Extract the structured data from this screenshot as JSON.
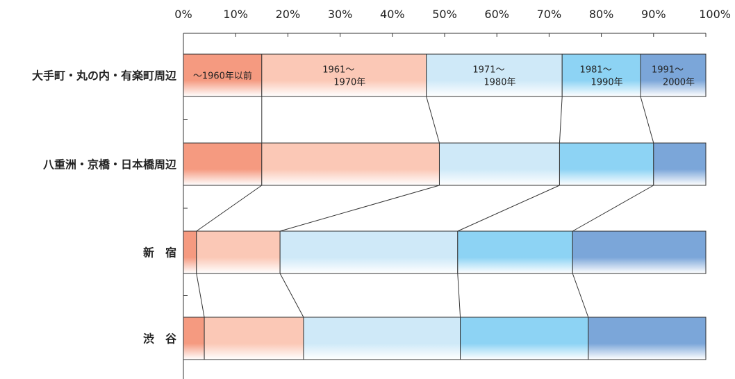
{
  "chart_data": {
    "type": "bar",
    "orientation": "horizontal",
    "stacked": true,
    "normalized": true,
    "x_ticks": [
      "0%",
      "10%",
      "20%",
      "30%",
      "40%",
      "50%",
      "60%",
      "70%",
      "80%",
      "90%",
      "100%"
    ],
    "xlim": [
      0,
      100
    ],
    "categories": [
      "大手町・丸の内・有楽町周辺",
      "八重洲・京橋・日本橋周辺",
      "新　宿",
      "渋　谷"
    ],
    "series": [
      {
        "name": "～1960年以前",
        "values": [
          15,
          15,
          2.5,
          4
        ],
        "color": "#f59a80"
      },
      {
        "name": "1961～\n1970年",
        "values": [
          31.5,
          34,
          16,
          19
        ],
        "color": "#fbc8b6"
      },
      {
        "name": "1971～\n1980年",
        "values": [
          26,
          23,
          34,
          30
        ],
        "color": "#cfe9f8"
      },
      {
        "name": "1981～\n1990年",
        "values": [
          15,
          18,
          22,
          24.5
        ],
        "color": "#8dd3f4"
      },
      {
        "name": "1991～\n2000年",
        "values": [
          12.5,
          10,
          25.5,
          22.5
        ],
        "color": "#7ba6d9"
      }
    ],
    "segment_labels_on_row": 0,
    "connector_lines": true,
    "legend": "none",
    "grid": false
  }
}
